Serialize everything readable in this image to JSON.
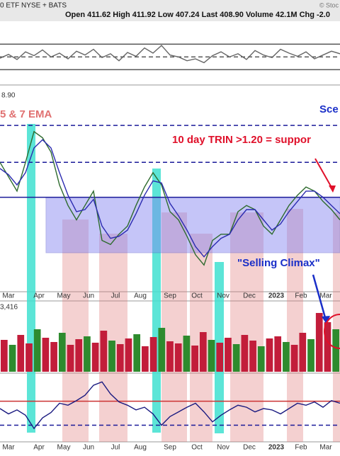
{
  "header": {
    "symbol": "0 ETF NYSE + BATS",
    "stats": "Open 411.62 High 411.92 Low 407.24 Last 408.90 Volume 42.1M Chg -2.0",
    "credit": "© Stoc"
  },
  "months": [
    "Mar",
    "Apr",
    "May",
    "Jun",
    "Jul",
    "Aug",
    "Sep",
    "Oct",
    "Nov",
    "Dec",
    "2023",
    "Feb",
    "Mar"
  ],
  "chart_data": [
    {
      "type": "line",
      "ylim": [
        0,
        100
      ],
      "levels": [
        {
          "value": 64,
          "style": "solid",
          "color": "#555555"
        },
        {
          "value": 44,
          "style": "dashed",
          "color": "#555555"
        },
        {
          "value": 24,
          "style": "solid",
          "color": "#555555"
        }
      ],
      "series": [
        {
          "color": "#666666",
          "values": [
            42,
            48,
            40,
            52,
            46,
            55,
            44,
            50,
            41,
            53,
            47,
            56,
            43,
            49,
            38,
            51,
            45,
            58,
            50,
            62,
            47,
            44,
            38,
            41,
            35,
            46,
            52,
            44,
            49,
            40,
            54,
            47,
            43,
            56,
            50,
            45,
            52,
            41,
            47,
            53,
            49
          ]
        }
      ]
    },
    {
      "type": "line",
      "label": "8.90",
      "ema_label": "5 & 7 EMA",
      "right_label": "Sce",
      "trin_note": "10 day TRIN >1.20 = suppor",
      "climax_note": "\"Selling Climax\"",
      "ylim": [
        0,
        100
      ],
      "zone": [
        19,
        46
      ],
      "levels": [
        {
          "value": 81,
          "style": "dashed",
          "color": "#1a1a99"
        },
        {
          "value": 63,
          "style": "dashed",
          "color": "#1a1a99"
        },
        {
          "value": 46,
          "style": "solid",
          "color": "#1a1a99"
        }
      ],
      "series": [
        {
          "color": "#2e6b2e",
          "values": [
            63,
            56,
            49,
            63,
            78,
            75,
            68,
            52,
            42,
            35,
            42,
            49,
            25,
            23,
            28,
            32,
            42,
            51,
            58,
            52,
            39,
            35,
            27,
            18,
            13,
            25,
            28,
            28,
            39,
            42,
            40,
            32,
            28,
            35,
            42,
            47,
            51,
            49,
            44,
            40,
            35
          ]
        },
        {
          "color": "#2b2bb0",
          "values": [
            60,
            57,
            52,
            58,
            70,
            74,
            70,
            58,
            47,
            39,
            40,
            45,
            32,
            26,
            27,
            30,
            38,
            47,
            54,
            53,
            43,
            37,
            30,
            22,
            17,
            22,
            26,
            28,
            35,
            40,
            40,
            35,
            30,
            33,
            39,
            44,
            49,
            49,
            46,
            42,
            38
          ]
        }
      ]
    },
    {
      "type": "bar",
      "label": "3,416",
      "ylim": [
        0,
        100
      ],
      "color": "#c21d3a",
      "values": [
        45,
        38,
        52,
        40,
        60,
        48,
        42,
        55,
        38,
        46,
        50,
        41,
        58,
        44,
        39,
        47,
        53,
        36,
        49,
        62,
        43,
        40,
        51,
        37,
        56,
        45,
        41,
        48,
        39,
        52,
        44,
        36,
        47,
        50,
        42,
        38,
        55,
        46,
        83,
        70,
        60
      ]
    },
    {
      "type": "line",
      "ylim": [
        0,
        100
      ],
      "levels": [
        {
          "value": 61,
          "style": "solid",
          "color": "#cc3333"
        },
        {
          "value": 25,
          "style": "dashed",
          "color": "#1a1a99"
        }
      ],
      "series": [
        {
          "color": "#1a1a80",
          "values": [
            50,
            42,
            48,
            40,
            20,
            36,
            44,
            58,
            55,
            62,
            70,
            85,
            90,
            72,
            60,
            55,
            48,
            52,
            42,
            25,
            38,
            45,
            52,
            58,
            45,
            30,
            40,
            48,
            55,
            52,
            45,
            50,
            48,
            42,
            50,
            58,
            55,
            60,
            52,
            62,
            58
          ]
        }
      ]
    }
  ]
}
